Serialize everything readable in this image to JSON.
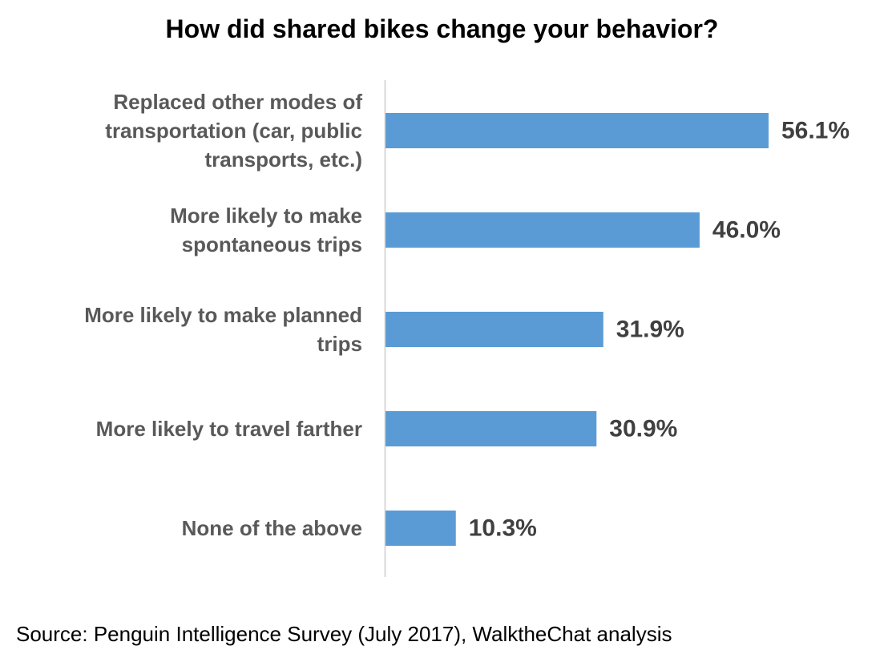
{
  "chart_data": {
    "type": "bar",
    "orientation": "horizontal",
    "title": "How did shared bikes change your behavior?",
    "categories": [
      [
        "Replaced other modes of",
        "transportation (car, public",
        "transports, etc.)"
      ],
      [
        "More likely to make",
        "spontaneous trips"
      ],
      [
        "More likely to make planned",
        "trips"
      ],
      [
        "More likely to travel farther"
      ],
      [
        "None of the above"
      ]
    ],
    "values": [
      56.1,
      46.0,
      31.9,
      30.9,
      10.3
    ],
    "value_labels": [
      "56.1%",
      "46.0%",
      "31.9%",
      "30.9%",
      "10.3%"
    ],
    "xlim": [
      0,
      100
    ],
    "grid": false,
    "legend": "none",
    "bar_color": "#5b9bd5",
    "axis_color": "#d9d9d9"
  },
  "source": "Source: Penguin Intelligence Survey (July 2017), WalktheChat analysis"
}
